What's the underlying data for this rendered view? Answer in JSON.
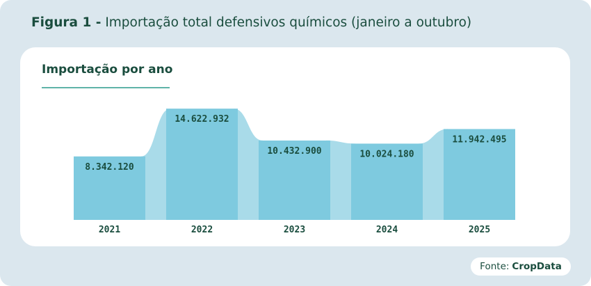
{
  "figure": {
    "label": "Figura 1 -",
    "title": "Importação total defensivos químicos (janeiro a outubro)"
  },
  "card": {
    "title": "Importação por ano"
  },
  "source": {
    "prefix": "Fonte:",
    "name": "CropData"
  },
  "colors": {
    "bar": "#7ecadf",
    "connector": "#a9dbe9",
    "value_text": "#1a4d3e",
    "title_text": "#1a4d3e",
    "rule": "#5fb3a8",
    "frame": "#dbe7ee"
  },
  "chart_data": {
    "type": "bar",
    "title": "Importação por ano",
    "categories": [
      "2021",
      "2022",
      "2023",
      "2024",
      "2025"
    ],
    "values": [
      8342120,
      14622932,
      10432900,
      10024180,
      11942495
    ],
    "value_labels": [
      "8.342.120",
      "14.622.932",
      "10.432.900",
      "10.024.180",
      "11.942.495"
    ],
    "ylim": [
      0,
      15000000
    ],
    "grid": false,
    "legend": "none"
  }
}
